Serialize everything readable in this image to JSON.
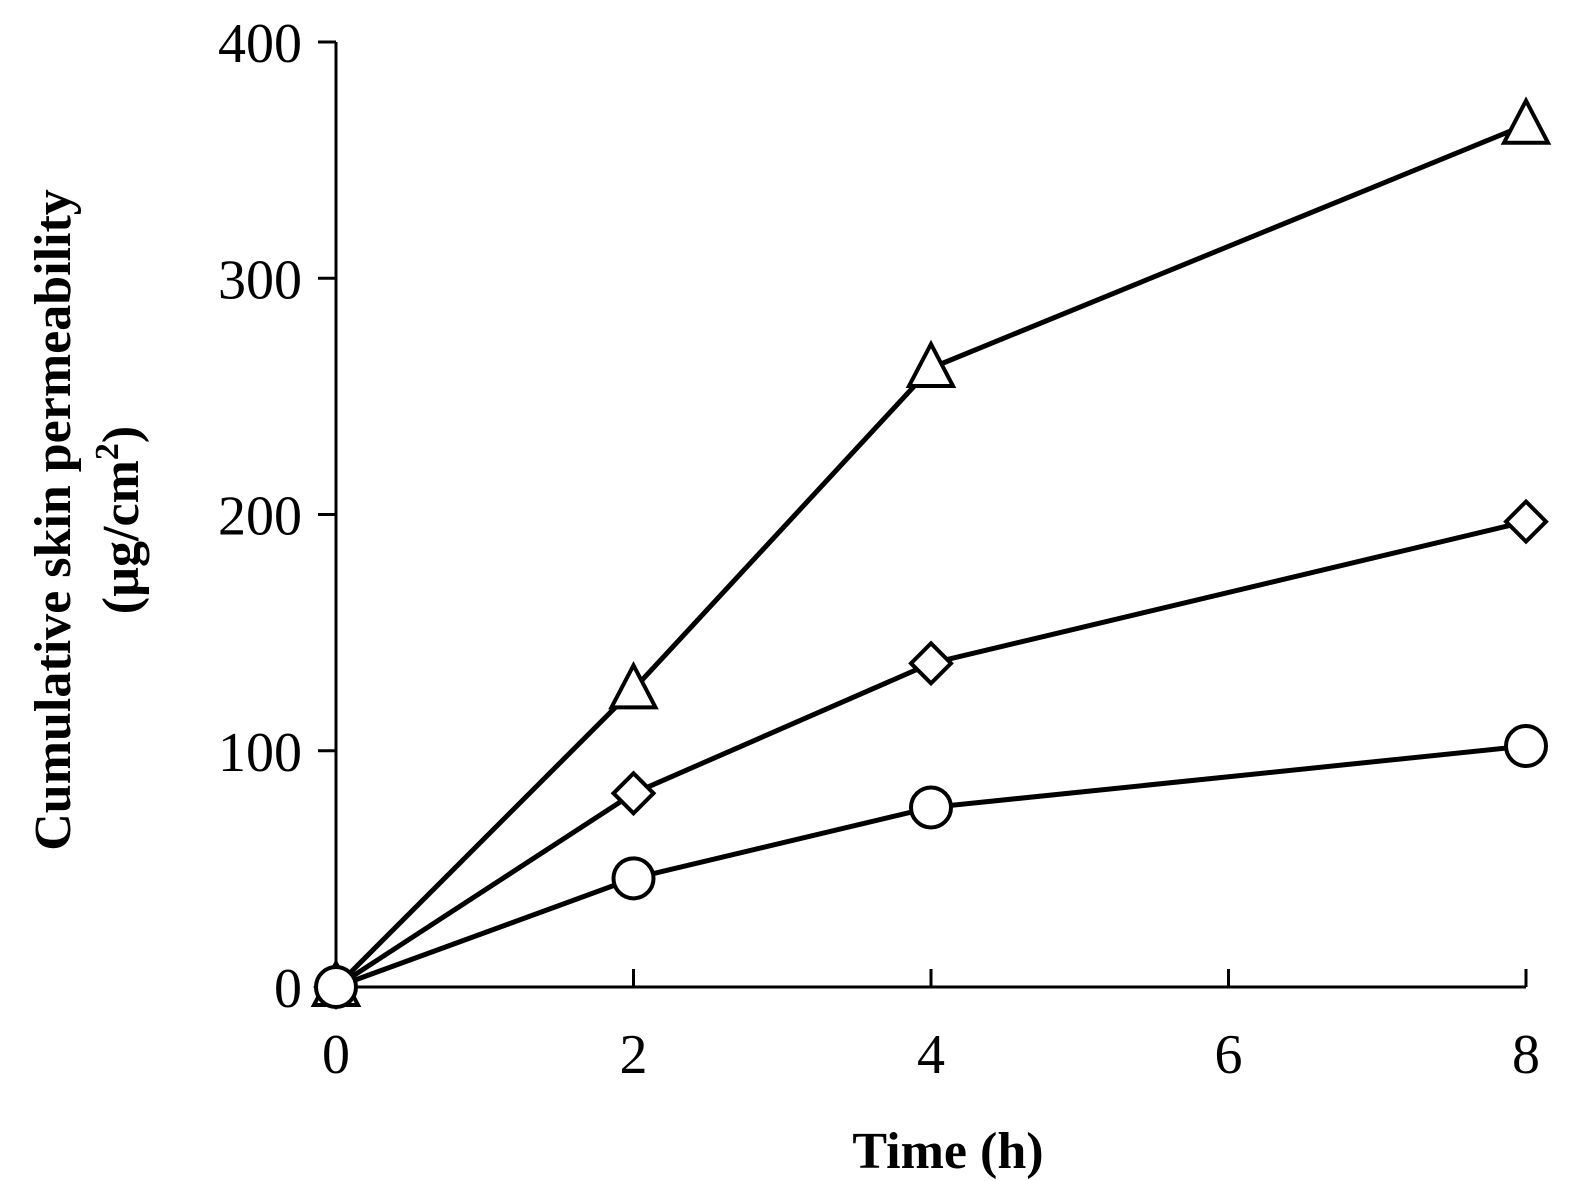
{
  "chart_data": {
    "type": "line",
    "title": "",
    "xlabel": "Time (h)",
    "ylabel_line1": "Cumulative skin permeability",
    "ylabel_line2_prefix": "(µg/cm",
    "ylabel_line2_superscript": "2",
    "ylabel_line2_suffix": ")",
    "xlim": [
      0,
      8
    ],
    "ylim": [
      0,
      400
    ],
    "xticks": [
      0,
      2,
      4,
      6,
      8
    ],
    "yticks": [
      0,
      100,
      200,
      300,
      400
    ],
    "grid": false,
    "series": [
      {
        "name": "triangle-series",
        "marker": "triangle",
        "x": [
          0,
          2,
          4,
          8
        ],
        "values": [
          0,
          126,
          262,
          365
        ]
      },
      {
        "name": "diamond-series",
        "marker": "diamond",
        "x": [
          0,
          2,
          4,
          8
        ],
        "values": [
          0,
          82,
          137,
          197
        ]
      },
      {
        "name": "circle-series",
        "marker": "circle",
        "x": [
          0,
          2,
          4,
          8
        ],
        "values": [
          0,
          46,
          76,
          102
        ]
      }
    ]
  }
}
